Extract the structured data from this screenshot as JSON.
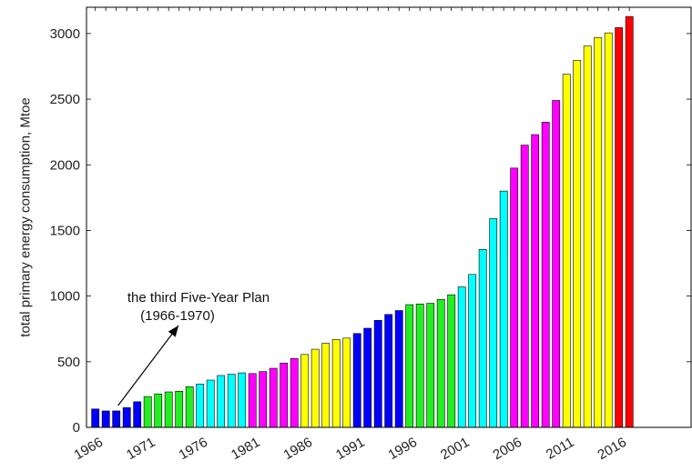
{
  "chart_data": {
    "type": "bar",
    "title": "",
    "xlabel": "",
    "ylabel": "total primary energy consumption, Mtoe",
    "ylim": [
      0,
      3200
    ],
    "yticks": [
      0,
      500,
      1000,
      1500,
      2000,
      2500,
      3000
    ],
    "xtick_labels": [
      "1966",
      "1971",
      "1976",
      "1981",
      "1986",
      "1991",
      "1996",
      "2001",
      "2006",
      "2011",
      "2016"
    ],
    "grid": false,
    "annotation": {
      "line1": "the third Five-Year Plan",
      "line2": "(1966-1970)",
      "points_to": "1968"
    },
    "periods": [
      {
        "years": "1966-1970",
        "color": "#0000ff"
      },
      {
        "years": "1971-1975",
        "color": "#22ee22"
      },
      {
        "years": "1976-1980",
        "color": "#00ffff"
      },
      {
        "years": "1981-1985",
        "color": "#ff00ff"
      },
      {
        "years": "1986-1990",
        "color": "#ffff00"
      },
      {
        "years": "1991-1995",
        "color": "#0000ff"
      },
      {
        "years": "1996-2000",
        "color": "#22ee22"
      },
      {
        "years": "2001-2005",
        "color": "#00ffff"
      },
      {
        "years": "2006-2010",
        "color": "#ff00ff"
      },
      {
        "years": "2011-2015",
        "color": "#ffff00"
      },
      {
        "years": "2016-2017",
        "color": "#ff0000"
      }
    ],
    "categories": [
      "1966",
      "1967",
      "1968",
      "1969",
      "1970",
      "1971",
      "1972",
      "1973",
      "1974",
      "1975",
      "1976",
      "1977",
      "1978",
      "1979",
      "1980",
      "1981",
      "1982",
      "1983",
      "1984",
      "1985",
      "1986",
      "1987",
      "1988",
      "1989",
      "1990",
      "1991",
      "1992",
      "1993",
      "1994",
      "1995",
      "1996",
      "1997",
      "1998",
      "1999",
      "2000",
      "2001",
      "2002",
      "2003",
      "2004",
      "2005",
      "2006",
      "2007",
      "2008",
      "2009",
      "2010",
      "2011",
      "2012",
      "2013",
      "2014",
      "2015",
      "2016",
      "2017"
    ],
    "values": [
      140,
      125,
      125,
      150,
      195,
      235,
      255,
      270,
      275,
      310,
      330,
      360,
      395,
      405,
      415,
      410,
      425,
      450,
      490,
      525,
      555,
      595,
      640,
      670,
      680,
      715,
      755,
      815,
      860,
      890,
      935,
      940,
      945,
      975,
      1010,
      1070,
      1165,
      1355,
      1590,
      1800,
      1975,
      2150,
      2230,
      2325,
      2490,
      2690,
      2795,
      2905,
      2970,
      3005,
      3045,
      3130
    ]
  }
}
